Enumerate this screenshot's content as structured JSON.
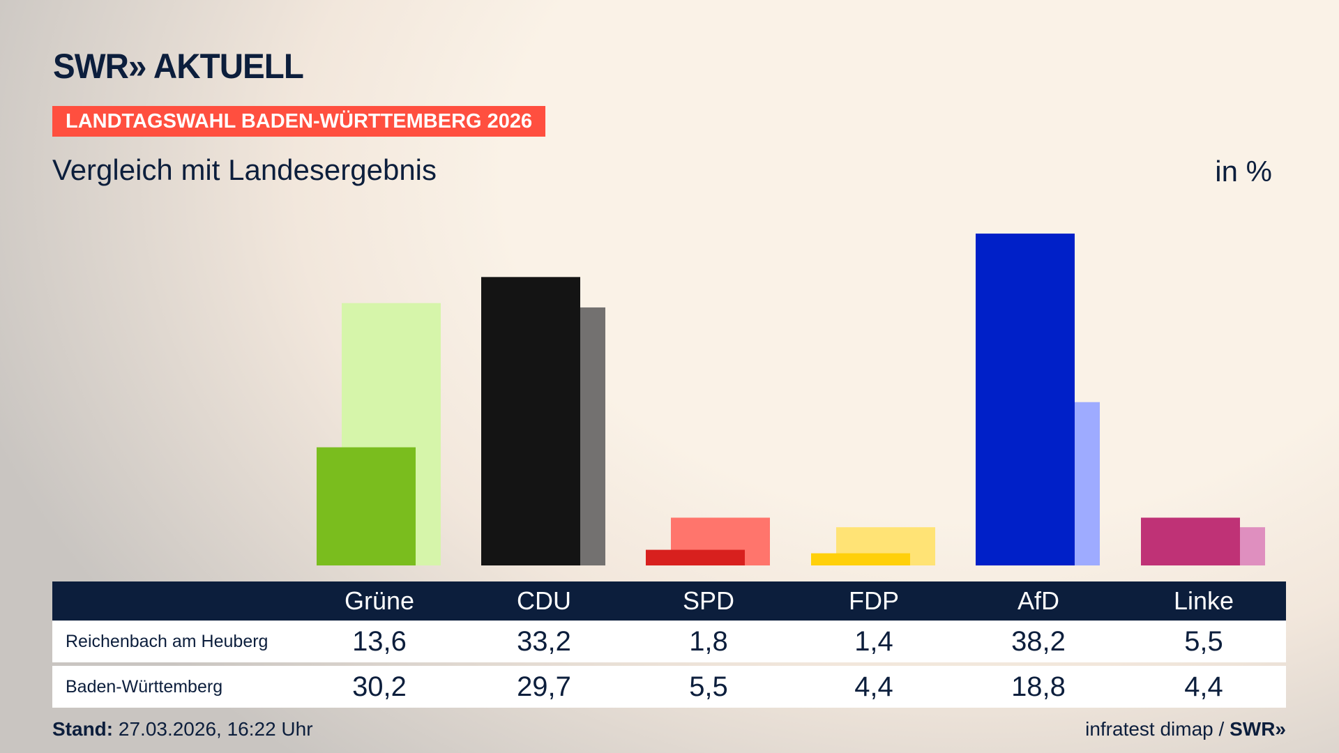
{
  "logo": "SWR» AKTUELL",
  "banner": "LANDTAGSWAHL BADEN-WÜRTTEMBERG 2026",
  "subtitle": "Vergleich mit Landesergebnis",
  "unit": "in %",
  "chart_data": {
    "type": "bar",
    "categories": [
      "Grüne",
      "CDU",
      "SPD",
      "FDP",
      "AfD",
      "Linke"
    ],
    "series": [
      {
        "name": "Reichenbach am Heuberg",
        "values": [
          13.6,
          33.2,
          1.8,
          1.4,
          38.2,
          5.5
        ],
        "colors": [
          "#7abd1e",
          "#141414",
          "#d8201e",
          "#ffd00a",
          "#0020c8",
          "#bf3276"
        ]
      },
      {
        "name": "Baden-Württemberg",
        "values": [
          30.2,
          29.7,
          5.5,
          4.4,
          18.8,
          4.4
        ],
        "colors": [
          "#d6f5aa",
          "#737170",
          "#ff756c",
          "#ffe375",
          "#9eabff",
          "#df8fbf"
        ]
      }
    ],
    "value_labels": [
      [
        "13,6",
        "33,2",
        "1,8",
        "1,4",
        "38,2",
        "5,5"
      ],
      [
        "30,2",
        "29,7",
        "5,5",
        "4,4",
        "18,8",
        "4,4"
      ]
    ]
  },
  "footer": {
    "stand_label": "Stand:",
    "stand_value": " 27.03.2026, 16:22 Uhr",
    "source": "infratest dimap / ",
    "source_logo": "SWR»"
  }
}
